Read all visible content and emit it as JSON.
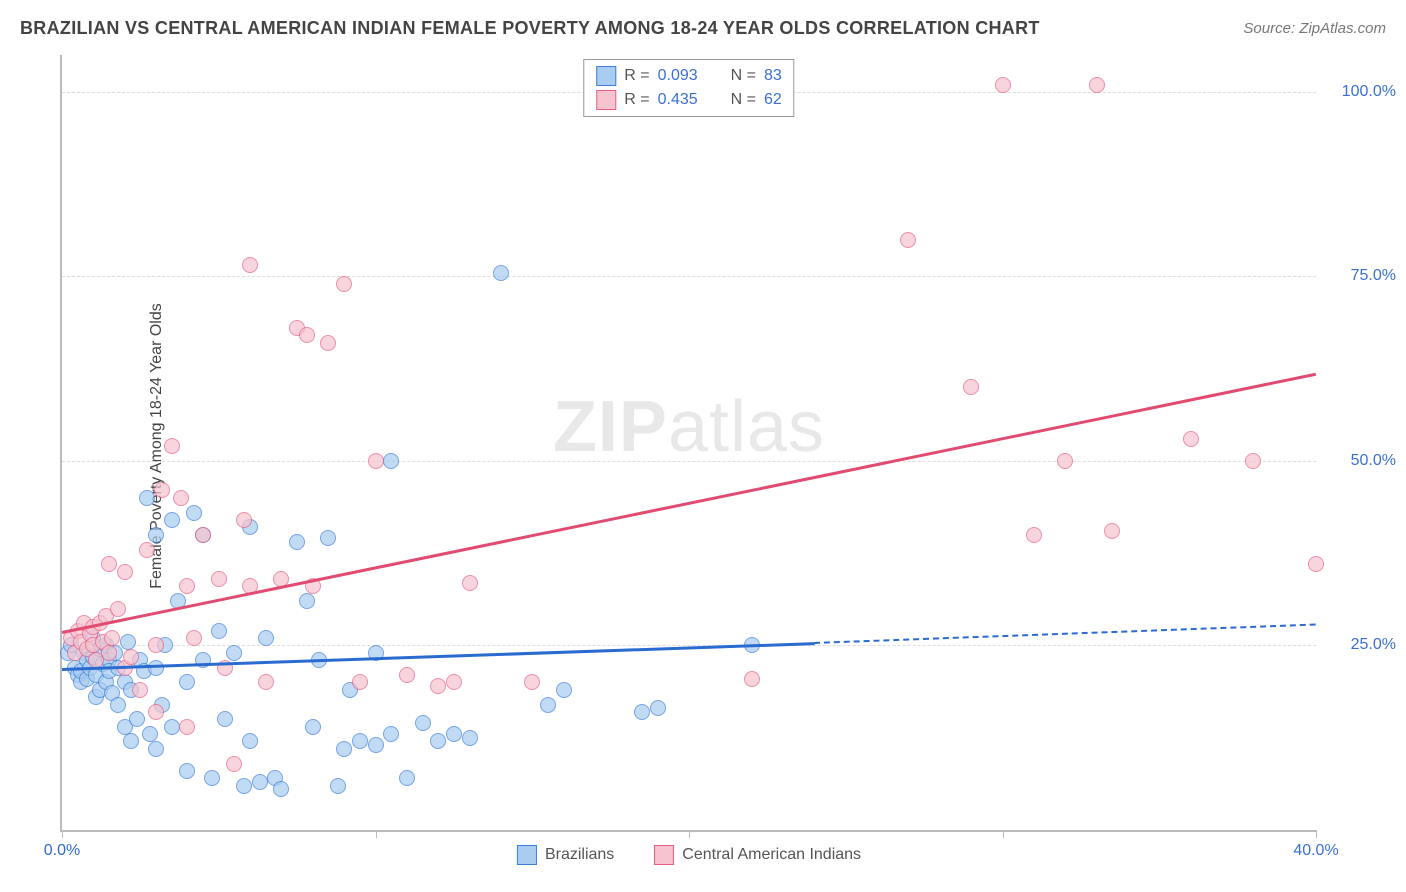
{
  "header": {
    "title": "BRAZILIAN VS CENTRAL AMERICAN INDIAN FEMALE POVERTY AMONG 18-24 YEAR OLDS CORRELATION CHART",
    "source_prefix": "Source: ",
    "source_name": "ZipAtlas.com"
  },
  "watermark": {
    "part1": "ZIP",
    "part2": "atlas"
  },
  "chart": {
    "type": "scatter",
    "y_axis_label": "Female Poverty Among 18-24 Year Olds",
    "xlim": [
      0,
      40
    ],
    "ylim": [
      0,
      105
    ],
    "x_ticks": [
      {
        "v": 0,
        "label": "0.0%"
      },
      {
        "v": 10,
        "label": ""
      },
      {
        "v": 20,
        "label": ""
      },
      {
        "v": 30,
        "label": ""
      },
      {
        "v": 40,
        "label": "40.0%"
      }
    ],
    "y_ticks": [
      {
        "v": 25,
        "label": "25.0%"
      },
      {
        "v": 50,
        "label": "50.0%"
      },
      {
        "v": 75,
        "label": "75.0%"
      },
      {
        "v": 100,
        "label": "100.0%"
      }
    ],
    "colors": {
      "blue_fill": "#a9cdf0",
      "blue_stroke": "#3b7dd8",
      "blue_line": "#2a6bd0",
      "pink_fill": "#f6c3cf",
      "pink_stroke": "#e85f85",
      "pink_line": "#e14b72",
      "grid": "#dddddd",
      "axis": "#bbbbbb",
      "text": "#444444",
      "value_text": "#3b6fd4",
      "x_label_left": "#2a6bd0",
      "x_label_right": "#3b6fd4"
    },
    "legend_top": [
      {
        "series": "blue",
        "r_label": "R = ",
        "r_value": "0.093",
        "n_label": "N = ",
        "n_value": "83"
      },
      {
        "series": "pink",
        "r_label": "R = ",
        "r_value": "0.435",
        "n_label": "N = ",
        "n_value": "62"
      }
    ],
    "legend_bottom": [
      {
        "series": "blue",
        "label": "Brazilians"
      },
      {
        "series": "pink",
        "label": "Central American Indians"
      }
    ],
    "trend_lines": [
      {
        "series": "blue",
        "x1": 0,
        "y1": 22,
        "x2": 24,
        "y2": 25.5,
        "dash_to_x": 40,
        "dash_to_y": 28
      },
      {
        "series": "pink",
        "x1": 0,
        "y1": 27,
        "x2": 40,
        "y2": 62
      }
    ],
    "series": [
      {
        "name": "blue",
        "points": [
          [
            0.2,
            24
          ],
          [
            0.3,
            25
          ],
          [
            0.4,
            22
          ],
          [
            0.5,
            21
          ],
          [
            0.6,
            20
          ],
          [
            0.6,
            21.5
          ],
          [
            0.7,
            24
          ],
          [
            0.8,
            23
          ],
          [
            0.8,
            20.5
          ],
          [
            0.9,
            22
          ],
          [
            1.0,
            26
          ],
          [
            1.0,
            23.5
          ],
          [
            1.1,
            18
          ],
          [
            1.1,
            21
          ],
          [
            1.2,
            19
          ],
          [
            1.2,
            24.5
          ],
          [
            1.3,
            22.5
          ],
          [
            1.4,
            25
          ],
          [
            1.4,
            20
          ],
          [
            1.5,
            23
          ],
          [
            1.5,
            21.5
          ],
          [
            1.6,
            18.5
          ],
          [
            1.7,
            24
          ],
          [
            1.8,
            17
          ],
          [
            1.8,
            22
          ],
          [
            2.0,
            14
          ],
          [
            2.0,
            20
          ],
          [
            2.1,
            25.5
          ],
          [
            2.2,
            12
          ],
          [
            2.2,
            19
          ],
          [
            2.4,
            15
          ],
          [
            2.5,
            23
          ],
          [
            2.6,
            21.5
          ],
          [
            2.7,
            45
          ],
          [
            2.8,
            13
          ],
          [
            3.0,
            40
          ],
          [
            3.0,
            11
          ],
          [
            3.0,
            22
          ],
          [
            3.2,
            17
          ],
          [
            3.3,
            25
          ],
          [
            3.5,
            14
          ],
          [
            3.5,
            42
          ],
          [
            3.7,
            31
          ],
          [
            4.0,
            8
          ],
          [
            4.0,
            20
          ],
          [
            4.2,
            43
          ],
          [
            4.5,
            40
          ],
          [
            4.5,
            23
          ],
          [
            4.8,
            7
          ],
          [
            5.0,
            27
          ],
          [
            5.2,
            15
          ],
          [
            5.5,
            24
          ],
          [
            5.8,
            6
          ],
          [
            6.0,
            41
          ],
          [
            6.0,
            12
          ],
          [
            6.3,
            6.5
          ],
          [
            6.5,
            26
          ],
          [
            6.8,
            7
          ],
          [
            7.0,
            5.5
          ],
          [
            7.5,
            39
          ],
          [
            7.8,
            31
          ],
          [
            8.0,
            14
          ],
          [
            8.2,
            23
          ],
          [
            8.5,
            39.5
          ],
          [
            8.8,
            6
          ],
          [
            9.0,
            11
          ],
          [
            9.2,
            19
          ],
          [
            9.5,
            12
          ],
          [
            10.0,
            24
          ],
          [
            10.0,
            11.5
          ],
          [
            10.5,
            13
          ],
          [
            10.5,
            50
          ],
          [
            11.0,
            7
          ],
          [
            11.5,
            14.5
          ],
          [
            12.0,
            12
          ],
          [
            12.5,
            13
          ],
          [
            13.0,
            12.5
          ],
          [
            14.0,
            75.5
          ],
          [
            15.5,
            17
          ],
          [
            16.0,
            19
          ],
          [
            18.5,
            16
          ],
          [
            19.0,
            16.5
          ],
          [
            22.0,
            25
          ]
        ]
      },
      {
        "name": "pink",
        "points": [
          [
            0.3,
            26
          ],
          [
            0.4,
            24
          ],
          [
            0.5,
            27
          ],
          [
            0.6,
            25.5
          ],
          [
            0.7,
            28
          ],
          [
            0.8,
            24.5
          ],
          [
            0.9,
            26.5
          ],
          [
            1.0,
            25
          ],
          [
            1.0,
            27.5
          ],
          [
            1.1,
            23
          ],
          [
            1.2,
            28
          ],
          [
            1.3,
            25.5
          ],
          [
            1.4,
            29
          ],
          [
            1.5,
            24
          ],
          [
            1.5,
            36
          ],
          [
            1.6,
            26
          ],
          [
            1.8,
            30
          ],
          [
            2.0,
            22
          ],
          [
            2.0,
            35
          ],
          [
            2.2,
            23.5
          ],
          [
            2.5,
            19
          ],
          [
            2.7,
            38
          ],
          [
            3.0,
            16
          ],
          [
            3.0,
            25
          ],
          [
            3.2,
            46
          ],
          [
            3.5,
            52
          ],
          [
            3.8,
            45
          ],
          [
            4.0,
            33
          ],
          [
            4.0,
            14
          ],
          [
            4.2,
            26
          ],
          [
            4.5,
            40
          ],
          [
            5.0,
            34
          ],
          [
            5.2,
            22
          ],
          [
            5.5,
            9
          ],
          [
            5.8,
            42
          ],
          [
            6.0,
            76.5
          ],
          [
            6.0,
            33
          ],
          [
            6.5,
            20
          ],
          [
            7.0,
            34
          ],
          [
            7.5,
            68
          ],
          [
            7.8,
            67
          ],
          [
            8.0,
            33
          ],
          [
            8.5,
            66
          ],
          [
            9.0,
            74
          ],
          [
            9.5,
            20
          ],
          [
            10.0,
            50
          ],
          [
            11.0,
            21
          ],
          [
            12.0,
            19.5
          ],
          [
            12.5,
            20
          ],
          [
            13.0,
            33.5
          ],
          [
            15.0,
            20
          ],
          [
            22.0,
            20.5
          ],
          [
            27.0,
            80
          ],
          [
            29.0,
            60
          ],
          [
            30.0,
            101
          ],
          [
            31.0,
            40
          ],
          [
            32.0,
            50
          ],
          [
            33.0,
            101
          ],
          [
            33.5,
            40.5
          ],
          [
            36.0,
            53
          ],
          [
            38.0,
            50
          ],
          [
            40.0,
            36
          ]
        ]
      }
    ]
  }
}
